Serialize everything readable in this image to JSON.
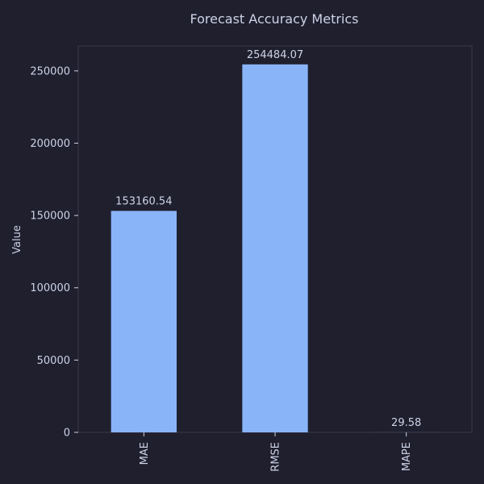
{
  "colors": {
    "background": "#1f1f2e",
    "plot_border": "#3a3a4c",
    "bar": "#8ab4f8",
    "text": "#cdd3e6"
  },
  "chart_data": {
    "type": "bar",
    "title": "Forecast Accuracy Metrics",
    "xlabel": "",
    "ylabel": "Value",
    "categories": [
      "MAE",
      "RMSE",
      "MAPE"
    ],
    "values": [
      153160.54,
      254484.07,
      29.58
    ],
    "data_labels": [
      "153160.54",
      "254484.07",
      "29.58"
    ],
    "ylim": [
      0,
      267208
    ],
    "yticks": [
      0,
      50000,
      100000,
      150000,
      200000,
      250000
    ],
    "ytick_labels": [
      "0",
      "50000",
      "100000",
      "150000",
      "200000",
      "250000"
    ],
    "grid": false,
    "legend": "none"
  }
}
